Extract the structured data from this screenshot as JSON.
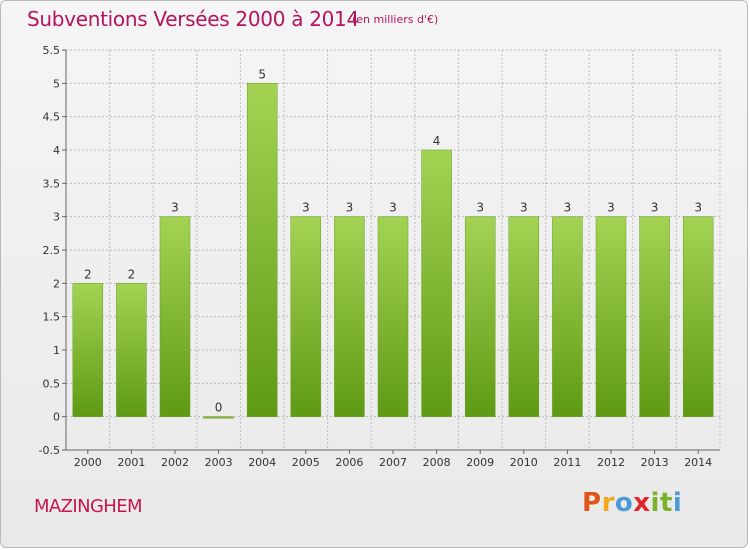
{
  "header": {
    "title": "Subventions Versées 2000 à 2014",
    "unit_note": "(en milliers d'€)"
  },
  "footer": {
    "commune": "MAZINGHEM",
    "logo_letters": [
      "P",
      "r",
      "o",
      "x",
      "i",
      "t",
      "i"
    ],
    "logo_colors": [
      "#e0561a",
      "#f2a81d",
      "#4c9ad8",
      "#e3262e",
      "#7cb22b",
      "#7cb22b",
      "#4c9ad8"
    ]
  },
  "colors": {
    "bar_top": "#a4d354",
    "bar_bottom": "#5f9a14",
    "title": "#b5135e",
    "grid": "#bdbdbd"
  },
  "chart_data": {
    "type": "bar",
    "title": "Subventions Versées 2000 à 2014",
    "subtitle": "(en milliers d'€)",
    "xlabel": "",
    "ylabel": "",
    "categories": [
      "2000",
      "2001",
      "2002",
      "2003",
      "2004",
      "2005",
      "2006",
      "2007",
      "2008",
      "2009",
      "2010",
      "2011",
      "2012",
      "2013",
      "2014"
    ],
    "values": [
      2,
      2,
      3,
      0,
      5,
      3,
      3,
      3,
      4,
      3,
      3,
      3,
      3,
      3,
      3
    ],
    "data_labels": [
      "2",
      "2",
      "3",
      "0",
      "5",
      "3",
      "3",
      "3",
      "4",
      "3",
      "3",
      "3",
      "3",
      "3",
      "3"
    ],
    "ylim": [
      -0.5,
      5.5
    ],
    "yticks": [
      "-0.5",
      "0",
      "0.5",
      "1",
      "1.5",
      "2",
      "2.5",
      "3",
      "3.5",
      "4",
      "4.5",
      "5",
      "5.5"
    ],
    "ytick_values": [
      -0.5,
      0,
      0.5,
      1,
      1.5,
      2,
      2.5,
      3,
      3.5,
      4,
      4.5,
      5,
      5.5
    ],
    "grid": true,
    "legend": "none"
  }
}
